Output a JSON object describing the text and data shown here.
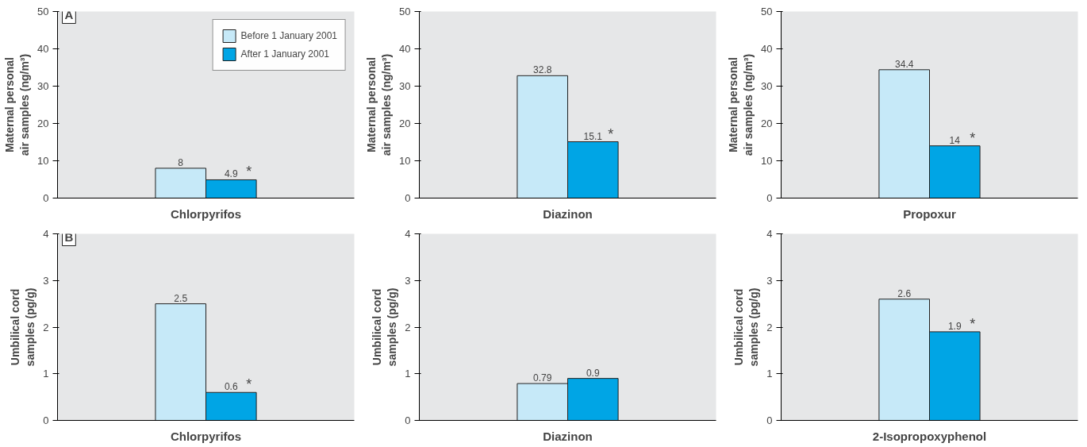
{
  "chart_data": [
    {
      "type": "bar",
      "categories": [
        "Chlorpyrifos"
      ],
      "ylabel": "Maternal personal air samples (ng/m³)",
      "ylim": [
        0,
        50
      ],
      "yticks": [
        0,
        10,
        20,
        30,
        40,
        50
      ],
      "legend": "top right",
      "data_labels": true,
      "annotations": [
        "A",
        {
          "text": "*",
          "x": "Chlorpyrifos",
          "y": 4.9
        }
      ],
      "series": [
        {
          "name": "Before 1 January 2001",
          "color": "#c6e9f8",
          "values": [
            8
          ]
        },
        {
          "name": "After 1 January 2001",
          "color": "#00a5e5",
          "values": [
            4.9
          ]
        }
      ]
    },
    {
      "type": "bar",
      "categories": [
        "Diazinon"
      ],
      "ylabel": "Maternal personal air samples (ng/m³)",
      "ylim": [
        0,
        50
      ],
      "yticks": [
        0,
        10,
        20,
        30,
        40,
        50
      ],
      "data_labels": true,
      "annotations": [
        {
          "text": "*",
          "x": "Diazinon",
          "y": 15.1
        }
      ],
      "series": [
        {
          "color": "#c6e9f8",
          "values": [
            32.8
          ]
        },
        {
          "color": "#00a5e5",
          "values": [
            15.1
          ]
        }
      ]
    },
    {
      "type": "bar",
      "categories": [
        "Propoxur"
      ],
      "ylabel": "Maternal personal air samples (ng/m³)",
      "ylim": [
        0,
        50
      ],
      "yticks": [
        0,
        10,
        20,
        30,
        40,
        50
      ],
      "data_labels": true,
      "annotations": [
        {
          "text": "*",
          "x": "Propoxur",
          "y": 14
        }
      ],
      "series": [
        {
          "color": "#c6e9f8",
          "values": [
            34.4
          ]
        },
        {
          "color": "#00a5e5",
          "values": [
            14
          ]
        }
      ]
    },
    {
      "type": "bar",
      "categories": [
        "Chlorpyrifos"
      ],
      "ylabel": "Umbilical cord samples (pg/g)",
      "ylim": [
        0,
        4
      ],
      "yticks": [
        0,
        1,
        2,
        3,
        4
      ],
      "data_labels": true,
      "annotations": [
        "B",
        {
          "text": "*",
          "x": "Chlorpyrifos",
          "y": 0.6
        }
      ],
      "series": [
        {
          "color": "#c6e9f8",
          "values": [
            2.5
          ]
        },
        {
          "color": "#00a5e5",
          "values": [
            0.6
          ]
        }
      ]
    },
    {
      "type": "bar",
      "categories": [
        "Diazinon"
      ],
      "ylabel": "Umbilical cord samples (pg/g)",
      "ylim": [
        0,
        4
      ],
      "yticks": [
        0,
        1,
        2,
        3,
        4
      ],
      "data_labels": true,
      "series": [
        {
          "color": "#c6e9f8",
          "values": [
            0.79
          ]
        },
        {
          "color": "#00a5e5",
          "values": [
            0.9
          ]
        }
      ]
    },
    {
      "type": "bar",
      "categories": [
        "2-Isopropoxyphenol"
      ],
      "ylabel": "Umbilical cord samples (pg/g)",
      "ylim": [
        0,
        4
      ],
      "yticks": [
        0,
        1,
        2,
        3,
        4
      ],
      "data_labels": true,
      "annotations": [
        {
          "text": "*",
          "x": "2-Isopropoxyphenol",
          "y": 1.9
        }
      ],
      "series": [
        {
          "color": "#c6e9f8",
          "values": [
            2.6
          ]
        },
        {
          "color": "#00a5e5",
          "values": [
            1.9
          ]
        }
      ]
    }
  ]
}
